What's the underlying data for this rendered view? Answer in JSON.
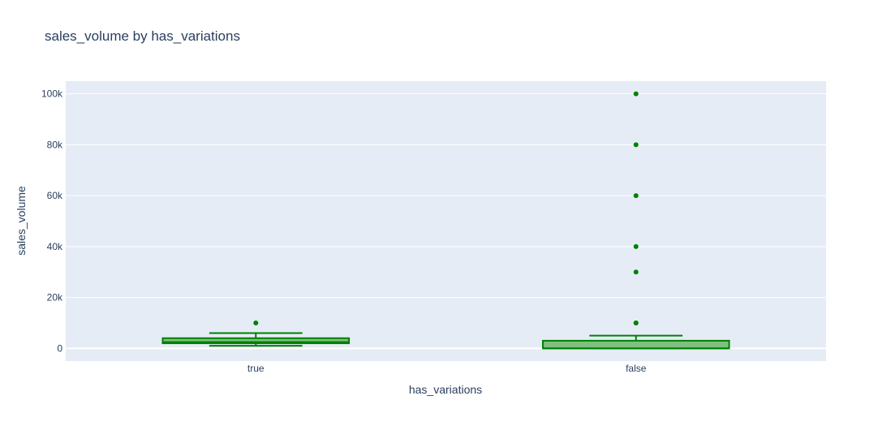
{
  "chart_data": {
    "type": "box",
    "title": "sales_volume by has_variations",
    "xlabel": "has_variations",
    "ylabel": "sales_volume",
    "categories": [
      "true",
      "false"
    ],
    "ylim": [
      -5000,
      105000
    ],
    "yticks": [
      0,
      20000,
      40000,
      60000,
      80000,
      100000
    ],
    "ytick_labels": [
      "0",
      "20k",
      "40k",
      "60k",
      "80k",
      "100k"
    ],
    "grid": true,
    "colors": {
      "line": "#008000",
      "fill": "#7fbf7f",
      "plot_bg": "#e5ecf6",
      "grid": "#ffffff",
      "text": "#2a3f5f"
    },
    "boxes": [
      {
        "category": "true",
        "lower_whisker": 1000,
        "q1": 2000,
        "median": 2500,
        "q3": 4000,
        "upper_whisker": 6000,
        "outliers": [
          10000
        ]
      },
      {
        "category": "false",
        "lower_whisker": 0,
        "q1": 0,
        "median": 0,
        "q3": 3000,
        "upper_whisker": 5000,
        "outliers": [
          10000,
          10000,
          30000,
          40000,
          60000,
          80000,
          100000
        ]
      }
    ]
  }
}
